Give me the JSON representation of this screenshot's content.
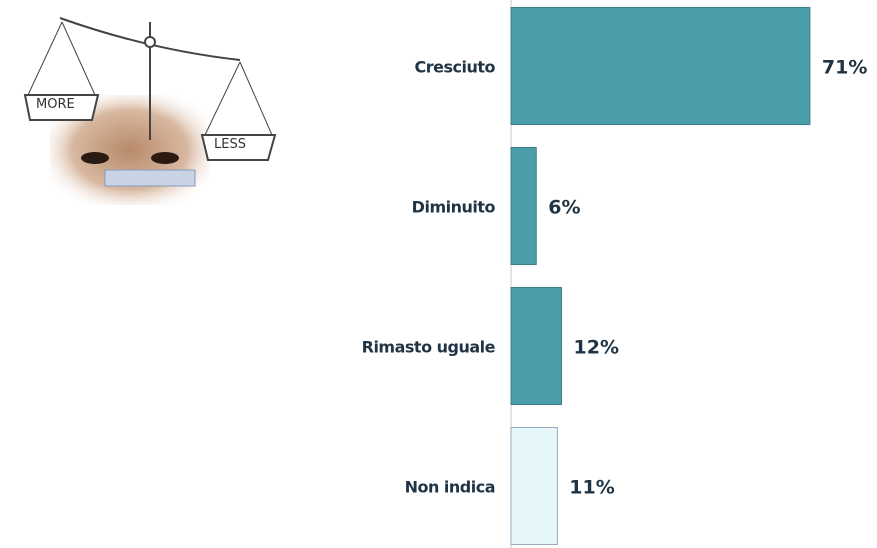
{
  "illustration": {
    "left_pan": "MORE",
    "right_pan": "LESS"
  },
  "chart_data": {
    "type": "bar",
    "orientation": "horizontal",
    "categories": [
      "Cresciuto",
      "Diminuito",
      "Rimasto uguale",
      "Non indica"
    ],
    "values": [
      71,
      6,
      12,
      11
    ],
    "value_labels": [
      "71%",
      "6%",
      "12%",
      "11%"
    ],
    "colors": [
      "#4b9ea9",
      "#4b9ea9",
      "#4b9ea9",
      "#e6f7fa"
    ]
  }
}
